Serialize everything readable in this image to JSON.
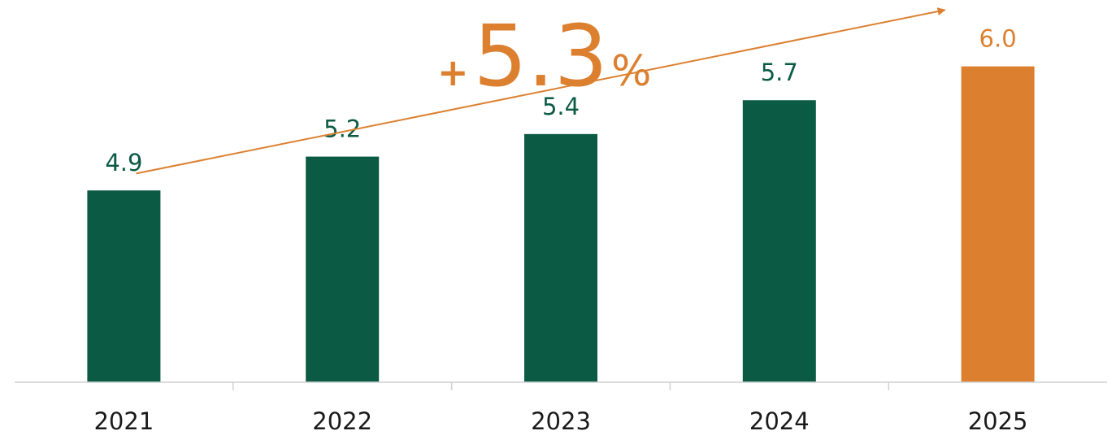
{
  "chart_data": {
    "type": "bar",
    "categories": [
      "2021",
      "2022",
      "2023",
      "2024",
      "2025"
    ],
    "values": [
      4.9,
      5.2,
      5.4,
      5.7,
      6.0
    ],
    "value_labels": [
      "4.9",
      "5.2",
      "5.4",
      "5.7",
      "6.0"
    ],
    "title": "",
    "xlabel": "",
    "ylabel": "",
    "ylim": [
      3.2,
      6.3
    ],
    "grid": false,
    "legend": "none",
    "highlight_index": 4,
    "colors": {
      "bar": "#0b5a43",
      "highlight": "#dc8030",
      "axis": "#d0d0d0",
      "tick_text": "#1a1a1a"
    },
    "annotation": {
      "prefix": "+",
      "value": "5.3",
      "suffix": "%",
      "arrow": {
        "from_index": 0,
        "to_index": 4,
        "from_value": 5.05,
        "to_value": 6.5
      }
    }
  }
}
